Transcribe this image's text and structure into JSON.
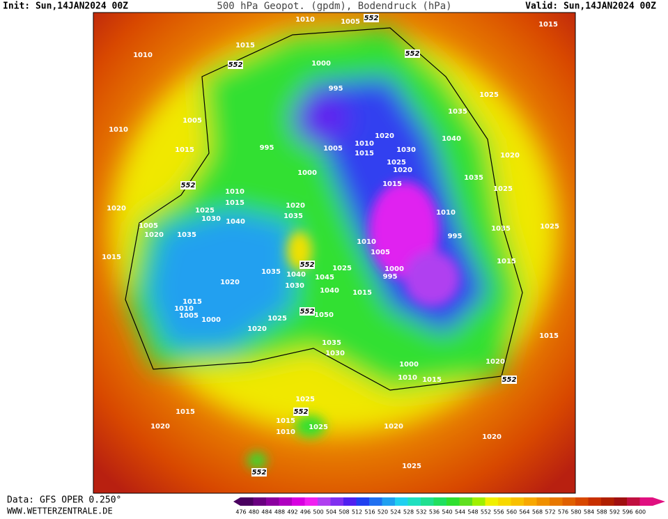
{
  "header": {
    "init": "Init: Sun,14JAN2024 00Z",
    "title": "500 hPa Geopot. (gpdm), Bodendruck (hPa)",
    "valid": "Valid: Sun,14JAN2024 00Z"
  },
  "footer": {
    "data": "Data: GFS OPER 0.250°",
    "site": "WWW.WETTERZENTRALE.DE"
  },
  "legend": {
    "labels": [
      476,
      480,
      484,
      488,
      492,
      496,
      500,
      504,
      508,
      512,
      516,
      520,
      524,
      528,
      532,
      536,
      540,
      544,
      548,
      552,
      556,
      560,
      564,
      568,
      572,
      576,
      580,
      584,
      588,
      592,
      596,
      600
    ],
    "colors": [
      "#4a0060",
      "#6a0080",
      "#8c00a0",
      "#b000c0",
      "#d800e0",
      "#f020f0",
      "#b040f0",
      "#8030f0",
      "#5020f0",
      "#2040f0",
      "#2070f0",
      "#20a0f0",
      "#20d0f0",
      "#20e0c0",
      "#20e090",
      "#20e060",
      "#30e030",
      "#60e020",
      "#a0f000",
      "#f0f000",
      "#f8d800",
      "#f8c000",
      "#f8a800",
      "#f09000",
      "#e87800",
      "#e06000",
      "#d84800",
      "#c83000",
      "#b02000",
      "#a01010",
      "#c01040",
      "#e01080"
    ]
  },
  "geopotential_labels": [
    "552",
    "552",
    "552",
    "552",
    "552",
    "552",
    "552",
    "552",
    "552"
  ],
  "isobar_labels": [
    "1010",
    "1005",
    "1015",
    "1010",
    "1015",
    "1000",
    "995",
    "1025",
    "1035",
    "1010",
    "1005",
    "1020",
    "1040",
    "1015",
    "995",
    "1005",
    "1010",
    "1015",
    "1030",
    "1025",
    "1020",
    "1020",
    "1000",
    "1035",
    "1015",
    "1025",
    "1010",
    "1015",
    "1020",
    "1020",
    "1025",
    "1030",
    "1040",
    "1035",
    "1010",
    "1005",
    "1020",
    "1035",
    "1035",
    "1025",
    "995",
    "1010",
    "1005",
    "1015",
    "1015",
    "1025",
    "1000",
    "995",
    "1035",
    "1040",
    "1045",
    "1020",
    "1030",
    "1040",
    "1015",
    "1015",
    "1010",
    "1005",
    "1000",
    "1050",
    "1025",
    "1020",
    "1015",
    "1035",
    "1030",
    "1020",
    "1000",
    "1010",
    "1015",
    "1025",
    "1015",
    "1025",
    "1010",
    "1015",
    "1020",
    "1020",
    "1020",
    "1025"
  ]
}
